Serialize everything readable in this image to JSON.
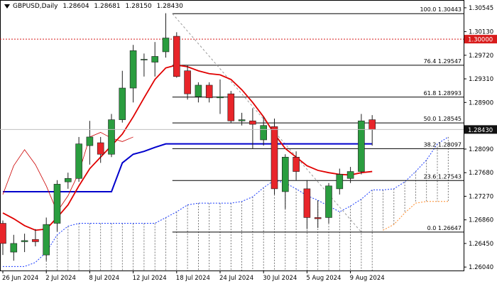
{
  "chart_data": {
    "type": "candlestick",
    "symbol": "GBPUSD",
    "timeframe": "Daily",
    "header": {
      "symbol_timeframe": "GBPUSD,Daily",
      "open": "1.28604",
      "high": "1.28681",
      "low": "1.28150",
      "close": "1.28430"
    },
    "ylim": [
      1.2598,
      1.3068
    ],
    "price_ticks": [
      "1.30545",
      "1.30130",
      "1.29720",
      "1.29310",
      "1.28900",
      "1.28090",
      "1.27680",
      "1.27270",
      "1.26860",
      "1.26450",
      "1.26040"
    ],
    "current_price": "1.28430",
    "level_1_30": "1.30000",
    "x_labels": [
      {
        "label": "26 Jun 2024",
        "index": 0
      },
      {
        "label": "2 Jul 2024",
        "index": 4
      },
      {
        "label": "8 Jul 2024",
        "index": 8
      },
      {
        "label": "12 Jul 2024",
        "index": 12
      },
      {
        "label": "18 Jul 2024",
        "index": 16
      },
      {
        "label": "24 Jul 2024",
        "index": 20
      },
      {
        "label": "30 Jul 2024",
        "index": 24
      },
      {
        "label": "5 Aug 2024",
        "index": 28
      },
      {
        "label": "9 Aug 2024",
        "index": 32
      }
    ],
    "candles": [
      {
        "o": 1.268,
        "h": 1.2685,
        "l": 1.2625,
        "c": 1.2645
      },
      {
        "o": 1.263,
        "h": 1.266,
        "l": 1.2615,
        "c": 1.2645
      },
      {
        "o": 1.2648,
        "h": 1.2662,
        "l": 1.263,
        "c": 1.265
      },
      {
        "o": 1.2652,
        "h": 1.267,
        "l": 1.264,
        "c": 1.2648
      },
      {
        "o": 1.2625,
        "h": 1.269,
        "l": 1.2615,
        "c": 1.2678
      },
      {
        "o": 1.268,
        "h": 1.2755,
        "l": 1.2665,
        "c": 1.2748
      },
      {
        "o": 1.2752,
        "h": 1.2768,
        "l": 1.274,
        "c": 1.2758
      },
      {
        "o": 1.2758,
        "h": 1.283,
        "l": 1.2752,
        "c": 1.2818
      },
      {
        "o": 1.2815,
        "h": 1.2858,
        "l": 1.2782,
        "c": 1.283
      },
      {
        "o": 1.282,
        "h": 1.283,
        "l": 1.2785,
        "c": 1.28
      },
      {
        "o": 1.28,
        "h": 1.287,
        "l": 1.2795,
        "c": 1.286
      },
      {
        "o": 1.286,
        "h": 1.2945,
        "l": 1.2855,
        "c": 1.2915
      },
      {
        "o": 1.2915,
        "h": 1.299,
        "l": 1.289,
        "c": 1.298
      },
      {
        "o": 1.2965,
        "h": 1.2975,
        "l": 1.2935,
        "c": 1.2965
      },
      {
        "o": 1.296,
        "h": 1.2995,
        "l": 1.2935,
        "c": 1.297
      },
      {
        "o": 1.2978,
        "h": 1.3045,
        "l": 1.2968,
        "c": 1.3002
      },
      {
        "o": 1.3005,
        "h": 1.3012,
        "l": 1.2933,
        "c": 1.2935
      },
      {
        "o": 1.2945,
        "h": 1.2955,
        "l": 1.2895,
        "c": 1.2905
      },
      {
        "o": 1.29,
        "h": 1.2925,
        "l": 1.289,
        "c": 1.292
      },
      {
        "o": 1.292,
        "h": 1.2925,
        "l": 1.289,
        "c": 1.2898
      },
      {
        "o": 1.2898,
        "h": 1.293,
        "l": 1.287,
        "c": 1.29
      },
      {
        "o": 1.2905,
        "h": 1.291,
        "l": 1.2855,
        "c": 1.2858
      },
      {
        "o": 1.2858,
        "h": 1.2872,
        "l": 1.285,
        "c": 1.286
      },
      {
        "o": 1.2858,
        "h": 1.288,
        "l": 1.281,
        "c": 1.2852
      },
      {
        "o": 1.2825,
        "h": 1.2865,
        "l": 1.2815,
        "c": 1.285
      },
      {
        "o": 1.2848,
        "h": 1.2862,
        "l": 1.273,
        "c": 1.274
      },
      {
        "o": 1.2735,
        "h": 1.28,
        "l": 1.2705,
        "c": 1.2795
      },
      {
        "o": 1.2795,
        "h": 1.2805,
        "l": 1.2755,
        "c": 1.277
      },
      {
        "o": 1.274,
        "h": 1.2755,
        "l": 1.267,
        "c": 1.269
      },
      {
        "o": 1.269,
        "h": 1.272,
        "l": 1.2672,
        "c": 1.2688
      },
      {
        "o": 1.269,
        "h": 1.275,
        "l": 1.268,
        "c": 1.2745
      },
      {
        "o": 1.274,
        "h": 1.2775,
        "l": 1.273,
        "c": 1.2765
      },
      {
        "o": 1.2758,
        "h": 1.2778,
        "l": 1.275,
        "c": 1.277
      },
      {
        "o": 1.277,
        "h": 1.287,
        "l": 1.2765,
        "c": 1.2858
      },
      {
        "o": 1.286,
        "h": 1.2868,
        "l": 1.2815,
        "c": 1.2843
      }
    ],
    "fibonacci": [
      {
        "label": "100.0 1.30443",
        "value": 1.30443
      },
      {
        "label": "76.4 1.29547",
        "value": 1.29547
      },
      {
        "label": "61.8 1.28993",
        "value": 1.28993
      },
      {
        "label": "50.0 1.28545",
        "value": 1.28545
      },
      {
        "label": "38.2 1.28097",
        "value": 1.28097
      },
      {
        "label": "23.6 1.27543",
        "value": 1.27543
      },
      {
        "label": "0.0 1.26647",
        "value": 1.26647
      }
    ],
    "series": [
      {
        "key": "red_ma",
        "color": "#e00000",
        "values": [
          1.2698,
          1.2688,
          1.2676,
          1.2668,
          1.267,
          1.269,
          1.2712,
          1.2745,
          1.2775,
          1.2795,
          1.2815,
          1.2835,
          1.2865,
          1.2898,
          1.293,
          1.295,
          1.2955,
          1.2952,
          1.2945,
          1.294,
          1.2938,
          1.293,
          1.2912,
          1.289,
          1.2865,
          1.2835,
          1.281,
          1.2795,
          1.278,
          1.2772,
          1.2768,
          1.2765,
          1.2764,
          1.2768,
          1.277
        ]
      },
      {
        "key": "thin_red_ma",
        "color": "#cc0000",
        "values": [
          1.273,
          1.278,
          1.2808,
          1.2782,
          1.2745,
          1.27,
          1.2728,
          1.2768,
          1.283,
          1.2838,
          1.2828,
          1.2822,
          1.283
        ]
      },
      {
        "key": "blue_baseline",
        "color": "#0000cc",
        "values": [
          1.2735,
          1.2735,
          1.2735,
          1.2735,
          1.2735,
          1.2735,
          1.2735,
          1.2735,
          1.2735,
          1.2735,
          1.2735,
          1.2785,
          1.28,
          1.2805,
          1.2812,
          1.2818,
          1.2818,
          1.2818,
          1.2818,
          1.2818,
          1.2818,
          1.2818,
          1.2818,
          1.2818,
          1.2818,
          1.2818,
          1.2818,
          1.2818,
          1.2818,
          1.2818,
          1.2818,
          1.2818,
          1.2818,
          1.2818,
          1.2818
        ]
      },
      {
        "key": "cloud_lower",
        "color": "#1a3cff",
        "values": [
          1.2605,
          1.2605,
          1.2605,
          1.2612,
          1.263,
          1.266,
          1.2675,
          1.268,
          1.268,
          1.268,
          1.268,
          1.268,
          1.268,
          1.268,
          1.268,
          1.269,
          1.27,
          1.2712,
          1.2715,
          1.2715,
          1.2715,
          1.2715,
          1.2718,
          1.2726,
          1.2742,
          1.2755,
          1.275,
          1.274,
          1.2728,
          1.272,
          1.271,
          1.27,
          1.271,
          1.2722,
          1.2738,
          1.2738,
          1.274,
          1.2752,
          1.277,
          1.279,
          1.2818,
          1.283
        ]
      },
      {
        "key": "cloud_upper",
        "color": "#ff8c2a",
        "values": [
          null,
          null,
          null,
          null,
          null,
          null,
          null,
          null,
          null,
          null,
          null,
          null,
          null,
          null,
          null,
          null,
          null,
          null,
          null,
          null,
          null,
          null,
          null,
          null,
          null,
          null,
          null,
          null,
          null,
          null,
          null,
          null,
          null,
          null,
          null,
          1.2668,
          1.2678,
          1.2698,
          1.2715,
          1.2718,
          1.2718,
          1.2718
        ]
      }
    ],
    "colors": {
      "bull": "#2a9d3f",
      "bear": "#e8252a",
      "wick": "#1e1e1e",
      "trendline": "#9a9a9a",
      "level_1_30": "#d81b1b",
      "price_tag_bg": "#111111"
    }
  }
}
